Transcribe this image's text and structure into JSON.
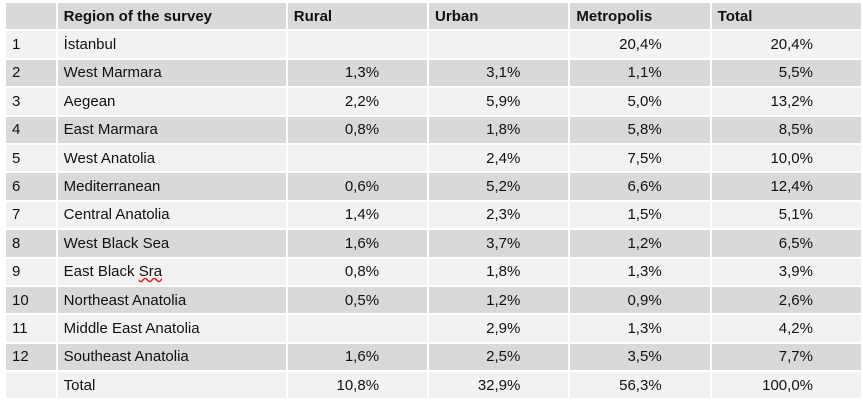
{
  "table": {
    "header": [
      null,
      "Region of the survey",
      "Rural",
      "Urban",
      "Metropolis",
      "Total"
    ],
    "rows": [
      [
        "1",
        "İstanbul",
        null,
        null,
        "20,4%",
        "20,4%"
      ],
      [
        "2",
        "West Marmara",
        "1,3%",
        "3,1%",
        "1,1%",
        "5,5%"
      ],
      [
        "3",
        "Aegean",
        "2,2%",
        "5,9%",
        "5,0%",
        "13,2%"
      ],
      [
        "4",
        "East Marmara",
        "0,8%",
        "1,8%",
        "5,8%",
        "8,5%"
      ],
      [
        "5",
        "West Anatolia",
        null,
        "2,4%",
        "7,5%",
        "10,0%"
      ],
      [
        "6",
        "Mediterranean",
        "0,6%",
        "5,2%",
        "6,6%",
        "12,4%"
      ],
      [
        "7",
        "Central Anatolia",
        "1,4%",
        "2,3%",
        "1,5%",
        "5,1%"
      ],
      [
        "8",
        "West Black Sea",
        "1,6%",
        "3,7%",
        "1,2%",
        "6,5%"
      ],
      [
        "9",
        "East Black Sra",
        "0,8%",
        "1,8%",
        "1,3%",
        "3,9%"
      ],
      [
        "10",
        "Northeast Anatolia",
        "0,5%",
        "1,2%",
        "0,9%",
        "2,6%"
      ],
      [
        "11",
        "Middle East Anatolia",
        null,
        "2,9%",
        "1,3%",
        "4,2%"
      ],
      [
        "12",
        "Southeast Anatolia",
        "1,6%",
        "2,5%",
        "3,5%",
        "7,7%"
      ],
      [
        null,
        "Total",
        "10,8%",
        "32,9%",
        "56,3%",
        "100,0%"
      ]
    ]
  }
}
